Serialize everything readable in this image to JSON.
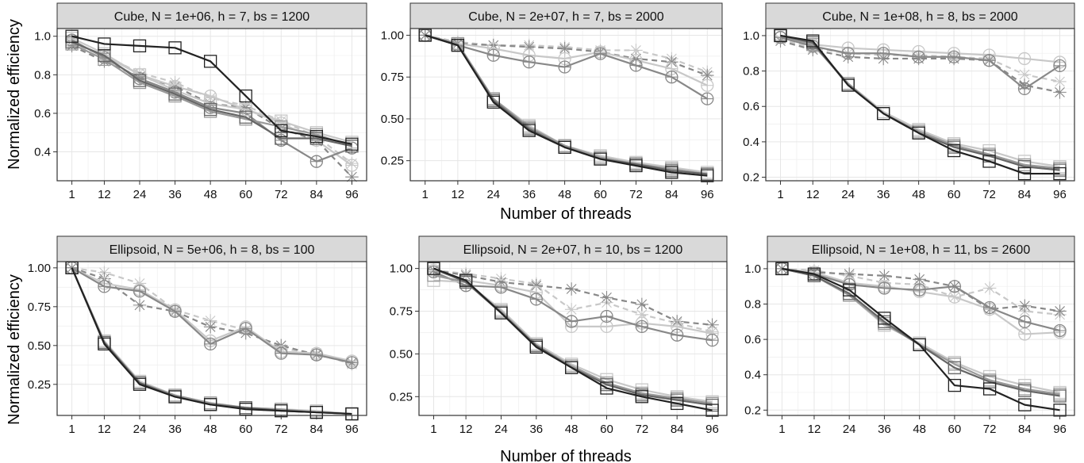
{
  "figure": {
    "ylabel": "Normalized efficiency",
    "xlabel": "Number of threads"
  },
  "chart_data": [
    {
      "type": "line",
      "title": "Cube, N = 1e+06, h = 7, bs = 1200",
      "x": [
        1,
        12,
        24,
        36,
        48,
        60,
        72,
        84,
        96
      ],
      "ylim": [
        0.25,
        1.04
      ],
      "yticks": [
        0.4,
        0.6,
        0.8,
        1.0
      ],
      "ytick_labels": [
        "0.4",
        "0.6",
        "0.8",
        "1.0"
      ],
      "series": [
        {
          "marker": "square",
          "color": "#222222",
          "dashed": false,
          "values": [
            1.0,
            0.96,
            0.95,
            0.94,
            0.87,
            0.69,
            0.51,
            0.48,
            0.44
          ]
        },
        {
          "marker": "square",
          "color": "#666666",
          "dashed": false,
          "values": [
            0.97,
            0.9,
            0.77,
            0.7,
            0.62,
            0.58,
            0.47,
            0.47,
            0.43
          ]
        },
        {
          "marker": "square",
          "color": "#999999",
          "dashed": false,
          "values": [
            0.96,
            0.88,
            0.76,
            0.69,
            0.61,
            0.57,
            0.53,
            0.49,
            0.43
          ]
        },
        {
          "marker": "square",
          "color": "#c8c8c8",
          "dashed": false,
          "values": [
            0.99,
            0.91,
            0.8,
            0.72,
            0.65,
            0.62,
            0.56,
            0.5,
            0.45
          ]
        },
        {
          "marker": "circle",
          "color": "#888888",
          "dashed": false,
          "values": [
            0.98,
            0.89,
            0.78,
            0.71,
            0.63,
            0.6,
            0.46,
            0.35,
            0.42
          ]
        },
        {
          "marker": "circle",
          "color": "#c8c8c8",
          "dashed": false,
          "values": [
            0.97,
            0.9,
            0.8,
            0.74,
            0.69,
            0.62,
            0.55,
            0.46,
            0.33
          ]
        },
        {
          "marker": "star",
          "color": "#888888",
          "dashed": true,
          "values": [
            0.95,
            0.87,
            0.79,
            0.74,
            0.65,
            0.63,
            0.52,
            0.46,
            0.27
          ]
        },
        {
          "marker": "star",
          "color": "#c8c8c8",
          "dashed": true,
          "values": [
            0.96,
            0.9,
            0.81,
            0.76,
            0.68,
            0.64,
            0.56,
            0.48,
            0.34
          ]
        }
      ]
    },
    {
      "type": "line",
      "title": "Cube, N = 2e+07, h = 7, bs = 2000",
      "x": [
        1,
        12,
        24,
        36,
        48,
        60,
        72,
        84,
        96
      ],
      "ylim": [
        0.13,
        1.04
      ],
      "yticks": [
        0.25,
        0.5,
        0.75,
        1.0
      ],
      "ytick_labels": [
        "0.25",
        "0.50",
        "0.75",
        "1.00"
      ],
      "series": [
        {
          "marker": "square",
          "color": "#222222",
          "dashed": false,
          "values": [
            1.0,
            0.94,
            0.6,
            0.43,
            0.33,
            0.26,
            0.22,
            0.18,
            0.16
          ]
        },
        {
          "marker": "square",
          "color": "#666666",
          "dashed": false,
          "values": [
            1.0,
            0.94,
            0.61,
            0.44,
            0.33,
            0.26,
            0.23,
            0.19,
            0.17
          ]
        },
        {
          "marker": "square",
          "color": "#999999",
          "dashed": false,
          "values": [
            1.0,
            0.95,
            0.62,
            0.45,
            0.34,
            0.27,
            0.23,
            0.2,
            0.17
          ]
        },
        {
          "marker": "square",
          "color": "#c8c8c8",
          "dashed": false,
          "values": [
            1.0,
            0.95,
            0.62,
            0.46,
            0.34,
            0.28,
            0.24,
            0.21,
            0.18
          ]
        },
        {
          "marker": "circle",
          "color": "#888888",
          "dashed": false,
          "values": [
            1.0,
            0.94,
            0.88,
            0.84,
            0.81,
            0.89,
            0.82,
            0.75,
            0.62
          ]
        },
        {
          "marker": "circle",
          "color": "#c8c8c8",
          "dashed": false,
          "values": [
            1.0,
            0.95,
            0.92,
            0.88,
            0.86,
            0.9,
            0.85,
            0.8,
            0.7
          ]
        },
        {
          "marker": "star",
          "color": "#888888",
          "dashed": true,
          "values": [
            1.0,
            0.95,
            0.94,
            0.93,
            0.92,
            0.9,
            0.86,
            0.84,
            0.76
          ]
        },
        {
          "marker": "star",
          "color": "#c8c8c8",
          "dashed": true,
          "values": [
            1.0,
            0.96,
            0.94,
            0.94,
            0.93,
            0.91,
            0.91,
            0.86,
            0.78
          ]
        }
      ]
    },
    {
      "type": "line",
      "title": "Cube, N = 1e+08, h = 8, bs = 2000",
      "x": [
        1,
        12,
        24,
        36,
        48,
        60,
        72,
        84,
        96
      ],
      "ylim": [
        0.18,
        1.04
      ],
      "yticks": [
        0.2,
        0.4,
        0.6,
        0.8,
        1.0
      ],
      "ytick_labels": [
        "0.2",
        "0.4",
        "0.6",
        "0.8",
        "1.0"
      ],
      "series": [
        {
          "marker": "square",
          "color": "#222222",
          "dashed": false,
          "values": [
            1.0,
            0.97,
            0.72,
            0.56,
            0.45,
            0.35,
            0.29,
            0.22,
            0.22
          ]
        },
        {
          "marker": "square",
          "color": "#666666",
          "dashed": false,
          "values": [
            1.0,
            0.96,
            0.72,
            0.56,
            0.45,
            0.37,
            0.32,
            0.26,
            0.24
          ]
        },
        {
          "marker": "square",
          "color": "#999999",
          "dashed": false,
          "values": [
            1.0,
            0.95,
            0.73,
            0.56,
            0.46,
            0.38,
            0.33,
            0.27,
            0.25
          ]
        },
        {
          "marker": "square",
          "color": "#c8c8c8",
          "dashed": false,
          "values": [
            1.0,
            0.95,
            0.73,
            0.57,
            0.47,
            0.39,
            0.35,
            0.29,
            0.26
          ]
        },
        {
          "marker": "circle",
          "color": "#888888",
          "dashed": false,
          "values": [
            0.99,
            0.94,
            0.9,
            0.9,
            0.88,
            0.88,
            0.86,
            0.7,
            0.83
          ]
        },
        {
          "marker": "circle",
          "color": "#c8c8c8",
          "dashed": false,
          "values": [
            0.99,
            0.95,
            0.93,
            0.92,
            0.91,
            0.9,
            0.89,
            0.87,
            0.85
          ]
        },
        {
          "marker": "star",
          "color": "#888888",
          "dashed": true,
          "values": [
            0.97,
            0.92,
            0.88,
            0.87,
            0.87,
            0.87,
            0.86,
            0.72,
            0.68
          ]
        },
        {
          "marker": "star",
          "color": "#c8c8c8",
          "dashed": true,
          "values": [
            0.98,
            0.93,
            0.9,
            0.89,
            0.89,
            0.88,
            0.87,
            0.78,
            0.74
          ]
        }
      ]
    },
    {
      "type": "line",
      "title": "Ellipsoid, N = 5e+06, h = 8, bs = 100",
      "x": [
        1,
        12,
        24,
        36,
        48,
        60,
        72,
        84,
        96
      ],
      "ylim": [
        0.05,
        1.04
      ],
      "yticks": [
        0.25,
        0.5,
        0.75,
        1.0
      ],
      "ytick_labels": [
        "0.25",
        "0.50",
        "0.75",
        "1.00"
      ],
      "series": [
        {
          "marker": "square",
          "color": "#222222",
          "dashed": false,
          "values": [
            1.0,
            0.51,
            0.25,
            0.17,
            0.12,
            0.09,
            0.08,
            0.07,
            0.06
          ]
        },
        {
          "marker": "square",
          "color": "#666666",
          "dashed": false,
          "values": [
            1.0,
            0.52,
            0.26,
            0.17,
            0.12,
            0.1,
            0.08,
            0.07,
            0.06
          ]
        },
        {
          "marker": "square",
          "color": "#999999",
          "dashed": false,
          "values": [
            1.0,
            0.52,
            0.26,
            0.18,
            0.13,
            0.1,
            0.09,
            0.07,
            0.06
          ]
        },
        {
          "marker": "square",
          "color": "#c8c8c8",
          "dashed": false,
          "values": [
            1.0,
            0.53,
            0.27,
            0.18,
            0.13,
            0.1,
            0.09,
            0.08,
            0.06
          ]
        },
        {
          "marker": "circle",
          "color": "#888888",
          "dashed": false,
          "values": [
            1.0,
            0.88,
            0.85,
            0.72,
            0.51,
            0.61,
            0.45,
            0.44,
            0.39
          ]
        },
        {
          "marker": "circle",
          "color": "#c8c8c8",
          "dashed": false,
          "values": [
            1.0,
            0.9,
            0.86,
            0.73,
            0.53,
            0.62,
            0.46,
            0.45,
            0.4
          ]
        },
        {
          "marker": "star",
          "color": "#888888",
          "dashed": true,
          "values": [
            1.0,
            0.93,
            0.76,
            0.72,
            0.62,
            0.58,
            0.5,
            0.44,
            0.39
          ]
        },
        {
          "marker": "star",
          "color": "#c8c8c8",
          "dashed": true,
          "values": [
            1.0,
            0.97,
            0.9,
            0.73,
            0.66,
            0.6,
            0.48,
            0.45,
            0.38
          ]
        }
      ]
    },
    {
      "type": "line",
      "title": "Ellipsoid, N = 2e+07, h = 10, bs = 1200",
      "x": [
        1,
        12,
        24,
        36,
        48,
        60,
        72,
        84,
        96
      ],
      "ylim": [
        0.14,
        1.04
      ],
      "yticks": [
        0.25,
        0.5,
        0.75,
        1.0
      ],
      "ytick_labels": [
        "0.25",
        "0.50",
        "0.75",
        "1.00"
      ],
      "series": [
        {
          "marker": "square",
          "color": "#222222",
          "dashed": false,
          "values": [
            1.0,
            0.93,
            0.74,
            0.54,
            0.42,
            0.3,
            0.25,
            0.21,
            0.17
          ]
        },
        {
          "marker": "square",
          "color": "#666666",
          "dashed": false,
          "values": [
            1.0,
            0.92,
            0.74,
            0.55,
            0.42,
            0.32,
            0.26,
            0.23,
            0.2
          ]
        },
        {
          "marker": "square",
          "color": "#999999",
          "dashed": false,
          "values": [
            0.96,
            0.92,
            0.75,
            0.55,
            0.43,
            0.33,
            0.27,
            0.24,
            0.21
          ]
        },
        {
          "marker": "square",
          "color": "#c8c8c8",
          "dashed": false,
          "values": [
            0.93,
            0.92,
            0.76,
            0.56,
            0.44,
            0.35,
            0.29,
            0.25,
            0.22
          ]
        },
        {
          "marker": "circle",
          "color": "#888888",
          "dashed": false,
          "values": [
            0.98,
            0.9,
            0.89,
            0.82,
            0.69,
            0.72,
            0.66,
            0.61,
            0.58
          ]
        },
        {
          "marker": "circle",
          "color": "#c8c8c8",
          "dashed": false,
          "values": [
            0.99,
            0.93,
            0.9,
            0.86,
            0.66,
            0.66,
            0.68,
            0.66,
            0.62
          ]
        },
        {
          "marker": "star",
          "color": "#888888",
          "dashed": true,
          "values": [
            0.99,
            0.96,
            0.92,
            0.9,
            0.88,
            0.83,
            0.79,
            0.69,
            0.67
          ]
        },
        {
          "marker": "star",
          "color": "#c8c8c8",
          "dashed": true,
          "values": [
            0.99,
            0.97,
            0.94,
            0.91,
            0.76,
            0.8,
            0.73,
            0.68,
            0.63
          ]
        }
      ]
    },
    {
      "type": "line",
      "title": "Ellipsoid, N = 1e+08, h = 11, bs = 2600",
      "x": [
        1,
        12,
        24,
        36,
        48,
        60,
        72,
        84,
        96
      ],
      "ylim": [
        0.17,
        1.04
      ],
      "yticks": [
        0.2,
        0.4,
        0.6,
        0.8,
        1.0
      ],
      "ytick_labels": [
        "0.2",
        "0.4",
        "0.6",
        "0.8",
        "1.0"
      ],
      "series": [
        {
          "marker": "square",
          "color": "#222222",
          "dashed": false,
          "values": [
            1.0,
            0.97,
            0.88,
            0.72,
            0.57,
            0.34,
            0.32,
            0.23,
            0.2
          ]
        },
        {
          "marker": "square",
          "color": "#666666",
          "dashed": false,
          "values": [
            1.0,
            0.96,
            0.86,
            0.7,
            0.57,
            0.44,
            0.36,
            0.31,
            0.28
          ]
        },
        {
          "marker": "square",
          "color": "#999999",
          "dashed": false,
          "values": [
            1.0,
            0.96,
            0.85,
            0.69,
            0.57,
            0.46,
            0.37,
            0.32,
            0.29
          ]
        },
        {
          "marker": "square",
          "color": "#c8c8c8",
          "dashed": false,
          "values": [
            1.0,
            0.96,
            0.85,
            0.68,
            0.58,
            0.47,
            0.39,
            0.34,
            0.3
          ]
        },
        {
          "marker": "circle",
          "color": "#888888",
          "dashed": false,
          "values": [
            1.0,
            0.97,
            0.91,
            0.89,
            0.88,
            0.9,
            0.78,
            0.7,
            0.65
          ]
        },
        {
          "marker": "circle",
          "color": "#c8c8c8",
          "dashed": false,
          "values": [
            1.0,
            0.98,
            0.92,
            0.9,
            0.87,
            0.84,
            0.77,
            0.63,
            0.64
          ]
        },
        {
          "marker": "star",
          "color": "#888888",
          "dashed": true,
          "values": [
            1.0,
            0.98,
            0.97,
            0.96,
            0.94,
            0.9,
            0.77,
            0.79,
            0.76
          ]
        },
        {
          "marker": "star",
          "color": "#c8c8c8",
          "dashed": true,
          "values": [
            1.0,
            0.99,
            0.96,
            0.92,
            0.91,
            0.84,
            0.89,
            0.76,
            0.74
          ]
        }
      ]
    }
  ]
}
